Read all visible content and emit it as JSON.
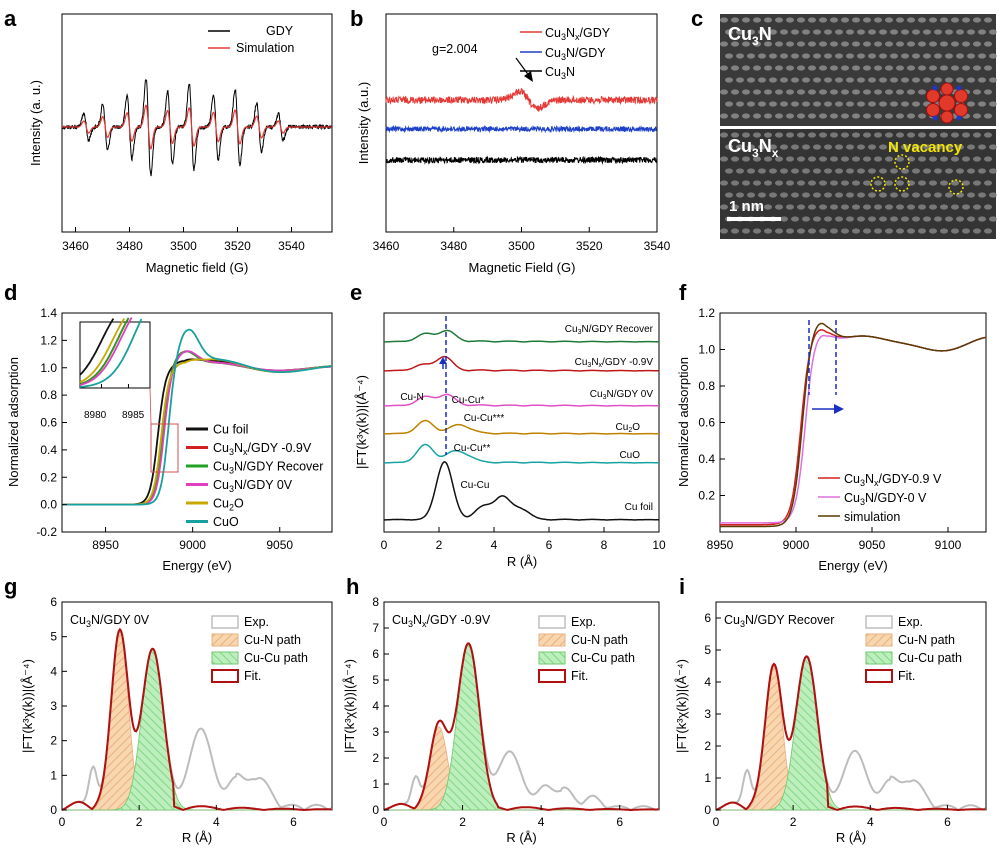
{
  "colors": {
    "gdy": "#000000",
    "simulation_a": "#e53935",
    "cu3nx_gdy": "#e53935",
    "cu3n_gdy": "#1e40c8",
    "cu3n": "#000000",
    "cu_foil": "#111111",
    "cu3nx_09v": "#d32020",
    "recover": "#22a022",
    "cu3n_0v": "#e040c0",
    "cu2o": "#c8a800",
    "cuo": "#17a0a0",
    "e_recover": "#1f7a3a",
    "e_cu3nx": "#c01818",
    "e_cu3n0v": "#e050c8",
    "e_cu2o": "#c08000",
    "e_cuo": "#16a3a3",
    "e_foil": "#111111",
    "f_cu3nx": "#d32020",
    "f_cu3n0v": "#e070e0",
    "f_sim": "#5a3a00",
    "exp": "#bdbdbd",
    "cun_fill": "#f4c89a",
    "cucu_fill": "#a8e6a8",
    "fit": "#b01010",
    "arrow_blue": "#1a2fbf"
  },
  "panel_labels": [
    "a",
    "b",
    "c",
    "d",
    "e",
    "f",
    "g",
    "h",
    "i"
  ],
  "chart_data": [
    {
      "id": "a",
      "type": "line",
      "xlabel": "Magnetic field (G)",
      "ylabel": "Intensity (a. u.)",
      "xlim": [
        3455,
        3555
      ],
      "xticks": [
        3460,
        3480,
        3500,
        3520,
        3540
      ],
      "legend": [
        "GDY",
        "Simulation"
      ],
      "legend_position": "top-right",
      "series": [
        {
          "name": "GDY",
          "lines_at": [
            3464,
            3471,
            3480,
            3487,
            3495,
            3503,
            3512,
            3520,
            3528,
            3536
          ]
        },
        {
          "name": "Simulation",
          "lines_at": [
            3464,
            3471,
            3480,
            3487,
            3495,
            3503,
            3512,
            3520,
            3528,
            3536
          ]
        }
      ]
    },
    {
      "id": "b",
      "type": "line",
      "xlabel": "Magnetic Field (G)",
      "ylabel": "Intensity (a.u.)",
      "xlim": [
        3460,
        3540
      ],
      "xticks": [
        3460,
        3480,
        3500,
        3520,
        3540
      ],
      "legend_position": "top-right",
      "series": [
        {
          "name": "Cu3Nx/GDY",
          "offset": 0.62,
          "signal_g": 3503
        },
        {
          "name": "Cu3N/GDY",
          "offset": 0.47
        },
        {
          "name": "Cu3N",
          "offset": 0.27
        }
      ],
      "annotation": "g=2.004"
    },
    {
      "id": "d",
      "type": "line",
      "xlabel": "Energy (eV)",
      "ylabel": "Normalized adsorption",
      "xlim": [
        8925,
        9080
      ],
      "ylim": [
        -0.2,
        1.4
      ],
      "xticks": [
        8950,
        9000,
        9050
      ],
      "yticks": [
        -0.2,
        0.0,
        0.2,
        0.4,
        0.6,
        0.8,
        1.0,
        1.2,
        1.4
      ],
      "inset_xticks": [
        8980,
        8985
      ],
      "legend_position": "bottom-right",
      "series": [
        {
          "name": "Cu foil"
        },
        {
          "name": "Cu3Nx/GDY -0.9V"
        },
        {
          "name": "Cu3N/GDY Recover"
        },
        {
          "name": "Cu3N/GDY 0V"
        },
        {
          "name": "Cu2O"
        },
        {
          "name": "CuO"
        }
      ]
    },
    {
      "id": "e",
      "type": "line",
      "xlabel": "R (Å)",
      "ylabel": "|FT(k³χ(k))|(Å⁻⁴)",
      "xlim": [
        0,
        10
      ],
      "xticks": [
        0,
        2,
        4,
        6,
        8,
        10
      ],
      "series": [
        {
          "name": "Cu3N/GDY Recover"
        },
        {
          "name": "Cu3Nx/GDY -0.9V"
        },
        {
          "name": "Cu3N/GDY 0V"
        },
        {
          "name": "Cu2O"
        },
        {
          "name": "CuO"
        },
        {
          "name": "Cu foil"
        }
      ],
      "annotations": [
        "Cu-N",
        "Cu-Cu*",
        "Cu-Cu***",
        "Cu-Cu**",
        "Cu-Cu"
      ]
    },
    {
      "id": "f",
      "type": "line",
      "xlabel": "Energy (eV)",
      "ylabel": "Normalized adsorption",
      "xlim": [
        8950,
        9125
      ],
      "ylim": [
        0.0,
        1.2
      ],
      "xticks": [
        8950,
        9000,
        9050,
        9100
      ],
      "yticks": [
        0.2,
        0.4,
        0.6,
        0.8,
        1.0,
        1.2
      ],
      "legend_position": "bottom-right",
      "series": [
        {
          "name": "Cu3Nx/GDY-0.9 V"
        },
        {
          "name": "Cu3N/GDY-0 V"
        },
        {
          "name": "simulation"
        }
      ]
    },
    {
      "id": "g",
      "type": "area",
      "title": "Cu3N/GDY 0V",
      "xlabel": "R (Å)",
      "ylabel": "|FT(k³χ(k))|(Å⁻⁴)",
      "xlim": [
        0,
        7
      ],
      "ylim": [
        0,
        6
      ],
      "xticks": [
        0,
        2,
        4,
        6
      ],
      "yticks": [
        0,
        1,
        2,
        3,
        4,
        5,
        6
      ],
      "legend": [
        "Exp.",
        "Cu-N path",
        "Cu-Cu path",
        "Fit."
      ],
      "peaks": {
        "cu_n": [
          1.5,
          5.15
        ],
        "cu_cu": [
          2.35,
          4.65
        ],
        "exp_extra": [
          3.6,
          2.35
        ]
      }
    },
    {
      "id": "h",
      "type": "area",
      "title": "Cu3Nx/GDY -0.9V",
      "xlabel": "R (Å)",
      "ylabel": "|FT(k³χ(k))|(Å⁻⁴)",
      "xlim": [
        0,
        7
      ],
      "ylim": [
        0,
        8
      ],
      "xticks": [
        0,
        2,
        4,
        6
      ],
      "yticks": [
        0,
        1,
        2,
        3,
        4,
        5,
        6,
        7,
        8
      ],
      "legend": [
        "Exp.",
        "Cu-N path",
        "Cu-Cu path",
        "Fit."
      ],
      "peaks": {
        "cu_n": [
          1.4,
          3.2
        ],
        "cu_cu": [
          2.15,
          6.4
        ],
        "exp_extra": [
          3.2,
          2.25
        ]
      }
    },
    {
      "id": "i",
      "type": "area",
      "title": "Cu3N/GDY Recover",
      "xlabel": "R (Å)",
      "ylabel": "|FT(k³χ(k))|(Å⁻⁴)",
      "xlim": [
        0,
        7
      ],
      "ylim": [
        0,
        6.5
      ],
      "xticks": [
        0,
        2,
        4,
        6
      ],
      "yticks": [
        0,
        1,
        2,
        3,
        4,
        5,
        6
      ],
      "legend": [
        "Exp.",
        "Cu-N path",
        "Cu-Cu path",
        "Fit."
      ],
      "peaks": {
        "cu_n": [
          1.5,
          4.5
        ],
        "cu_cu": [
          2.35,
          4.8
        ],
        "exp_extra": [
          3.6,
          1.85
        ]
      }
    }
  ],
  "panel_c": {
    "top_label": "Cu3N",
    "bottom_label": "Cu3Nx",
    "vacancy_label": "N vacancy",
    "scale_label": "1 nm"
  },
  "annotations": {
    "b_g": "g=2.004"
  }
}
